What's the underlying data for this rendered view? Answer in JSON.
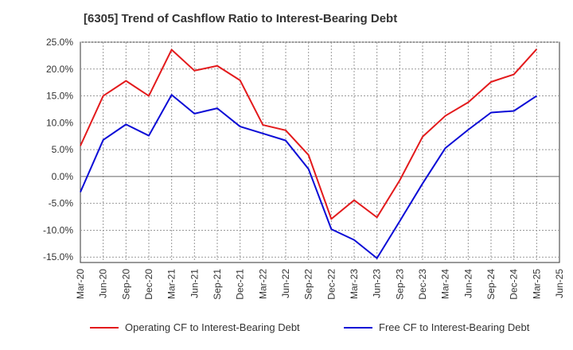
{
  "chart_data": {
    "type": "line",
    "title": "[6305]  Trend of Cashflow Ratio to Interest-Bearing Debt",
    "xlabel": "",
    "ylabel": "",
    "ylim": [
      -16,
      25
    ],
    "y_ticks": [
      "25.0%",
      "20.0%",
      "15.0%",
      "10.0%",
      "5.0%",
      "0.0%",
      "-5.0%",
      "-10.0%",
      "-15.0%"
    ],
    "y_tick_values": [
      25,
      20,
      15,
      10,
      5,
      0,
      -5,
      -10,
      -15
    ],
    "categories": [
      "Mar-20",
      "Jun-20",
      "Sep-20",
      "Dec-20",
      "Mar-21",
      "Jun-21",
      "Sep-21",
      "Dec-21",
      "Mar-22",
      "Jun-22",
      "Sep-22",
      "Dec-22",
      "Mar-23",
      "Jun-23",
      "Sep-23",
      "Dec-23",
      "Mar-24",
      "Jun-24",
      "Sep-24",
      "Dec-24",
      "Mar-25",
      "Jun-25"
    ],
    "grid": true,
    "legend_position": "bottom",
    "series": [
      {
        "name": "Operating CF to Interest-Bearing Debt",
        "color": "#e31a1c",
        "values": [
          5.7,
          15.0,
          17.8,
          15.0,
          23.6,
          19.7,
          20.6,
          17.9,
          9.6,
          8.6,
          4.0,
          -7.9,
          -4.4,
          -7.6,
          -0.7,
          7.4,
          11.3,
          13.8,
          17.6,
          19.0,
          23.7,
          null
        ]
      },
      {
        "name": "Free CF to Interest-Bearing Debt",
        "color": "#0b0bd6",
        "values": [
          -2.9,
          6.8,
          9.7,
          7.6,
          15.2,
          11.7,
          12.7,
          9.3,
          8.0,
          6.7,
          1.4,
          -9.8,
          -11.8,
          -15.2,
          -8.3,
          -1.3,
          5.3,
          8.7,
          11.9,
          12.2,
          15.0,
          null
        ]
      }
    ]
  }
}
